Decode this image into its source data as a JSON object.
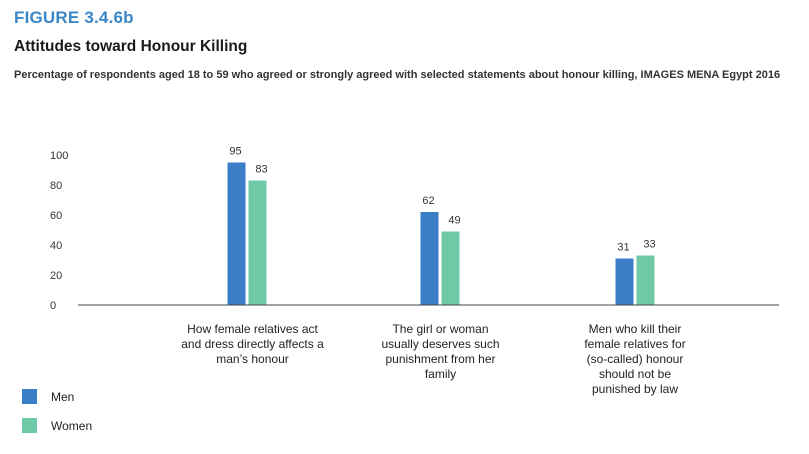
{
  "figure_label": "FIGURE 3.4.6b",
  "title": "Attitudes toward Honour Killing",
  "subtitle": "Percentage of respondents aged 18 to 59 who agreed or strongly agreed with selected statements about honour killing, IMAGES MENA Egypt 2016",
  "colors": {
    "men": "#3a7ec8",
    "women": "#6ecaa6",
    "axis": "#444444"
  },
  "chart_data": {
    "type": "bar",
    "categories": [
      "How female relatives act and dress directly affects a man’s honour",
      "The girl or woman usually deserves such punishment from her family",
      "Men who kill their female relatives for (so-called) honour should not be punished by law"
    ],
    "series": [
      {
        "name": "Men",
        "values": [
          95,
          62,
          31
        ]
      },
      {
        "name": "Women",
        "values": [
          83,
          49,
          33
        ]
      }
    ],
    "ylim": [
      0,
      100
    ],
    "yticks": [
      0,
      20,
      40,
      60,
      80,
      100
    ],
    "grid": false,
    "legend": "bottom-left"
  }
}
